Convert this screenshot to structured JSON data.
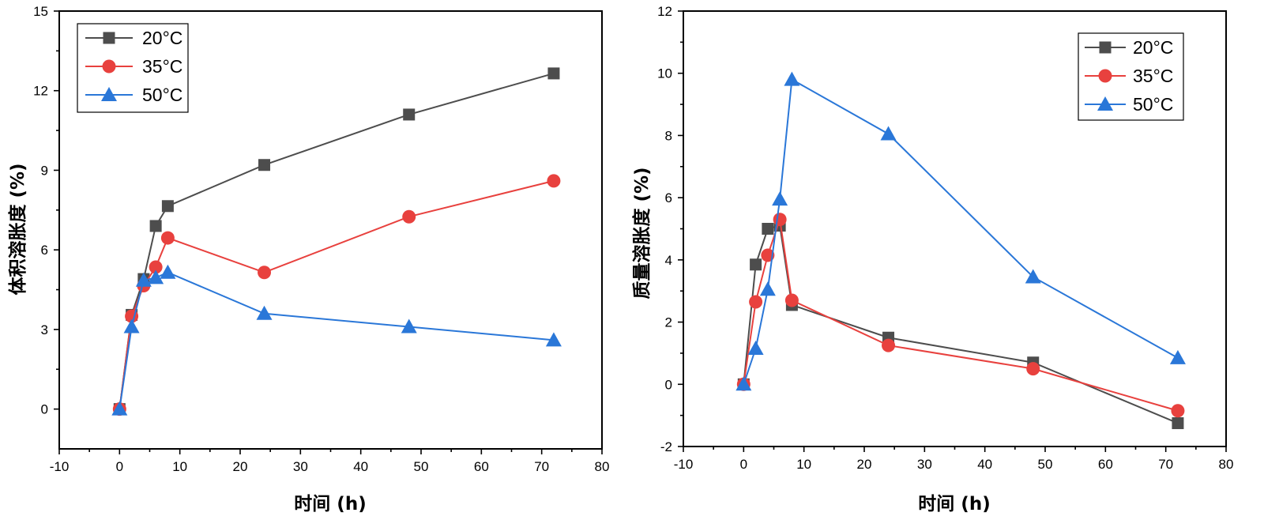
{
  "chart_data": [
    {
      "type": "line",
      "title": "",
      "xlabel": "时间 (h)",
      "ylabel": "体积溶胀度 (%)",
      "xlim": [
        -10,
        80
      ],
      "ylim": [
        -1.5,
        15
      ],
      "xticks": [
        -10,
        0,
        10,
        20,
        30,
        40,
        50,
        60,
        70,
        80
      ],
      "yticks": [
        0,
        3,
        6,
        9,
        12,
        15
      ],
      "legend_position": "top-left",
      "series": [
        {
          "name": "20°C",
          "color": "#4d4d4d",
          "marker": "square",
          "x": [
            0,
            2,
            4,
            6,
            8,
            24,
            48,
            72
          ],
          "y": [
            0,
            3.55,
            4.9,
            6.9,
            7.65,
            9.2,
            11.1,
            12.65
          ]
        },
        {
          "name": "35°C",
          "color": "#e8413e",
          "marker": "circle",
          "x": [
            0,
            2,
            4,
            6,
            8,
            24,
            48,
            72
          ],
          "y": [
            0,
            3.5,
            4.65,
            5.35,
            6.45,
            5.15,
            7.25,
            8.6
          ]
        },
        {
          "name": "50°C",
          "color": "#2a77d8",
          "marker": "triangle",
          "x": [
            0,
            2,
            4,
            6,
            8,
            24,
            48,
            72
          ],
          "y": [
            0,
            3.1,
            4.85,
            4.95,
            5.15,
            3.6,
            3.1,
            2.6
          ]
        }
      ]
    },
    {
      "type": "line",
      "title": "",
      "xlabel": "时间 (h)",
      "ylabel": "质量溶胀度 (%)",
      "xlim": [
        -10,
        80
      ],
      "ylim": [
        -2,
        12
      ],
      "xticks": [
        -10,
        0,
        10,
        20,
        30,
        40,
        50,
        60,
        70,
        80
      ],
      "yticks": [
        -2,
        0,
        2,
        4,
        6,
        8,
        10,
        12
      ],
      "legend_position": "top-right",
      "series": [
        {
          "name": "20°C",
          "color": "#4d4d4d",
          "marker": "square",
          "x": [
            0,
            2,
            4,
            6,
            8,
            24,
            48,
            72
          ],
          "y": [
            0,
            3.85,
            5.0,
            5.1,
            2.55,
            1.5,
            0.7,
            -1.25
          ]
        },
        {
          "name": "35°C",
          "color": "#e8413e",
          "marker": "circle",
          "x": [
            0,
            2,
            4,
            6,
            8,
            24,
            48,
            72
          ],
          "y": [
            0,
            2.65,
            4.15,
            5.3,
            2.7,
            1.25,
            0.5,
            -0.85
          ]
        },
        {
          "name": "50°C",
          "color": "#2a77d8",
          "marker": "triangle",
          "x": [
            0,
            2,
            4,
            6,
            8,
            24,
            48,
            72
          ],
          "y": [
            0,
            1.15,
            3.05,
            5.95,
            9.8,
            8.05,
            3.45,
            0.85
          ]
        }
      ]
    }
  ]
}
